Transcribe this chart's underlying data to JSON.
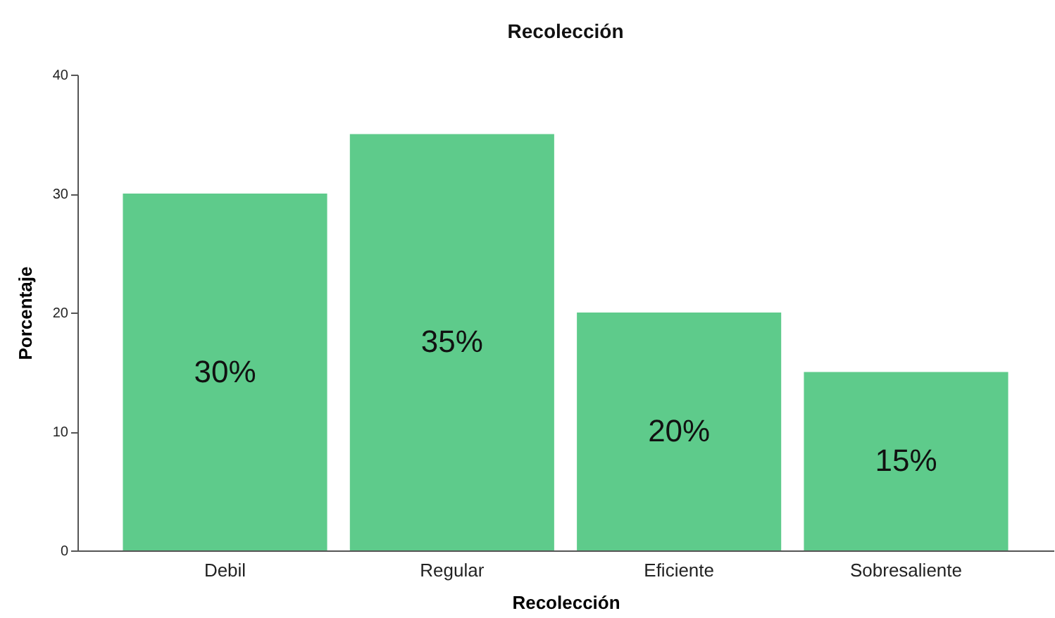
{
  "chart_data": {
    "type": "bar",
    "title": "Recolección",
    "xlabel": "Recolección",
    "ylabel": "Porcentaje",
    "categories": [
      "Debil",
      "Regular",
      "Eficiente",
      "Sobresaliente"
    ],
    "values": [
      30,
      35,
      20,
      15
    ],
    "value_labels": [
      "30%",
      "35%",
      "20%",
      "15%"
    ],
    "color": "#5ecb8b",
    "ylim": [
      0,
      40
    ],
    "yticks": [
      0,
      10,
      20,
      30,
      40
    ],
    "grid": false
  }
}
